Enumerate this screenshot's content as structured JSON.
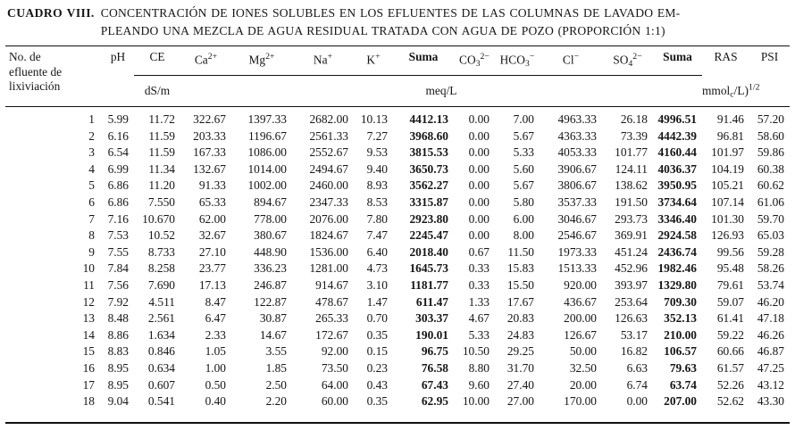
{
  "title": {
    "label": "CUADRO VIII.",
    "line1": "CONCENTRACIÓN DE IONES SOLUBLES EN LOS EFLUENTES DE LAS COLUMNAS DE LAVADO EM-",
    "line2": "PLEANDO UNA MEZCLA DE AGUA RESIDUAL TRATADA CON AGUA DE POZO (PROPORCIÓN 1:1)"
  },
  "header": {
    "row_label_lines": [
      "No. de",
      "efluente de",
      "lixiviación"
    ],
    "ph": "pH",
    "ions": [
      {
        "key": "ce",
        "base": "CE"
      },
      {
        "key": "ca",
        "base": "Ca",
        "sup": "2+"
      },
      {
        "key": "mg",
        "base": "Mg",
        "sup": "2+"
      },
      {
        "key": "na",
        "base": "Na",
        "sup": "+"
      },
      {
        "key": "k",
        "base": "K",
        "sup": "+"
      },
      {
        "key": "suma-cationes",
        "base": "Suma",
        "bold": true
      },
      {
        "key": "co3",
        "base": "CO",
        "sub": "3",
        "sup": "2−"
      },
      {
        "key": "hco3",
        "base": "HCO",
        "sub": "3",
        "sup": "−"
      },
      {
        "key": "cl",
        "base": "Cl",
        "sup": "−"
      },
      {
        "key": "so4",
        "base": "SO",
        "sub": "4",
        "sup": "2−"
      },
      {
        "key": "suma-aniones",
        "base": "Suma",
        "bold": true
      }
    ],
    "ras_label": "RAS",
    "psi_label": "PSI",
    "units": {
      "ce": "dS/m",
      "ions": "meq/L",
      "ras": {
        "p1": "mmol",
        "sub": "c",
        "p2": "/L)",
        "sup": "1/2"
      }
    }
  },
  "table": {
    "rows": [
      [
        "1",
        "5.99",
        "11.72",
        "322.67",
        "1397.33",
        "2682.00",
        "10.13",
        "4412.13",
        "0.00",
        "7.00",
        "4963.33",
        "26.18",
        "4996.51",
        "91.46",
        "57.20"
      ],
      [
        "2",
        "6.16",
        "11.59",
        "203.33",
        "1196.67",
        "2561.33",
        "7.27",
        "3968.60",
        "0.00",
        "5.67",
        "4363.33",
        "73.39",
        "4442.39",
        "96.81",
        "58.60"
      ],
      [
        "3",
        "6.54",
        "11.59",
        "167.33",
        "1086.00",
        "2552.67",
        "9.53",
        "3815.53",
        "0.00",
        "5.33",
        "4053.33",
        "101.77",
        "4160.44",
        "101.97",
        "59.86"
      ],
      [
        "4",
        "6.99",
        "11.34",
        "132.67",
        "1014.00",
        "2494.67",
        "9.40",
        "3650.73",
        "0.00",
        "5.60",
        "3906.67",
        "124.11",
        "4036.37",
        "104.19",
        "60.38"
      ],
      [
        "5",
        "6.86",
        "11.20",
        "91.33",
        "1002.00",
        "2460.00",
        "8.93",
        "3562.27",
        "0.00",
        "5.67",
        "3806.67",
        "138.62",
        "3950.95",
        "105.21",
        "60.62"
      ],
      [
        "6",
        "6.86",
        "7.550",
        "65.33",
        "894.67",
        "2347.33",
        "8.53",
        "3315.87",
        "0.00",
        "5.80",
        "3537.33",
        "191.50",
        "3734.64",
        "107.14",
        "61.06"
      ],
      [
        "7",
        "7.16",
        "10.670",
        "62.00",
        "778.00",
        "2076.00",
        "7.80",
        "2923.80",
        "0.00",
        "6.00",
        "3046.67",
        "293.73",
        "3346.40",
        "101.30",
        "59.70"
      ],
      [
        "8",
        "7.53",
        "10.52",
        "32.67",
        "380.67",
        "1824.67",
        "7.47",
        "2245.47",
        "0.00",
        "8.00",
        "2546.67",
        "369.91",
        "2924.58",
        "126.93",
        "65.03"
      ],
      [
        "9",
        "7.55",
        "8.733",
        "27.10",
        "448.90",
        "1536.00",
        "6.40",
        "2018.40",
        "0.67",
        "11.50",
        "1973.33",
        "451.24",
        "2436.74",
        "99.56",
        "59.28"
      ],
      [
        "10",
        "7.84",
        "8.258",
        "23.77",
        "336.23",
        "1281.00",
        "4.73",
        "1645.73",
        "0.33",
        "15.83",
        "1513.33",
        "452.96",
        "1982.46",
        "95.48",
        "58.26"
      ],
      [
        "11",
        "7.56",
        "7.690",
        "17.13",
        "246.87",
        "914.67",
        "3.10",
        "1181.77",
        "0.33",
        "15.50",
        "920.00",
        "393.97",
        "1329.80",
        "79.61",
        "53.74"
      ],
      [
        "12",
        "7.92",
        "4.511",
        "8.47",
        "122.87",
        "478.67",
        "1.47",
        "611.47",
        "1.33",
        "17.67",
        "436.67",
        "253.64",
        "709.30",
        "59.07",
        "46.20"
      ],
      [
        "13",
        "8.48",
        "2.561",
        "6.47",
        "30.87",
        "265.33",
        "0.70",
        "303.37",
        "4.67",
        "20.83",
        "200.00",
        "126.63",
        "352.13",
        "61.41",
        "47.18"
      ],
      [
        "14",
        "8.86",
        "1.634",
        "2.33",
        "14.67",
        "172.67",
        "0.35",
        "190.01",
        "5.33",
        "24.83",
        "126.67",
        "53.17",
        "210.00",
        "59.22",
        "46.26"
      ],
      [
        "15",
        "8.83",
        "0.846",
        "1.05",
        "3.55",
        "92.00",
        "0.15",
        "96.75",
        "10.50",
        "29.25",
        "50.00",
        "16.82",
        "106.57",
        "60.66",
        "46.87"
      ],
      [
        "16",
        "8.95",
        "0.634",
        "1.00",
        "1.85",
        "73.50",
        "0.23",
        "76.58",
        "8.80",
        "31.70",
        "32.50",
        "6.63",
        "79.63",
        "61.57",
        "47.25"
      ],
      [
        "17",
        "8.95",
        "0.607",
        "0.50",
        "2.50",
        "64.00",
        "0.43",
        "67.43",
        "9.60",
        "27.40",
        "20.00",
        "6.74",
        "63.74",
        "52.26",
        "43.12"
      ],
      [
        "18",
        "9.04",
        "0.541",
        "0.40",
        "2.20",
        "60.00",
        "0.35",
        "62.95",
        "10.00",
        "27.00",
        "170.00",
        "0.00",
        "207.00",
        "52.62",
        "43.30"
      ]
    ]
  }
}
